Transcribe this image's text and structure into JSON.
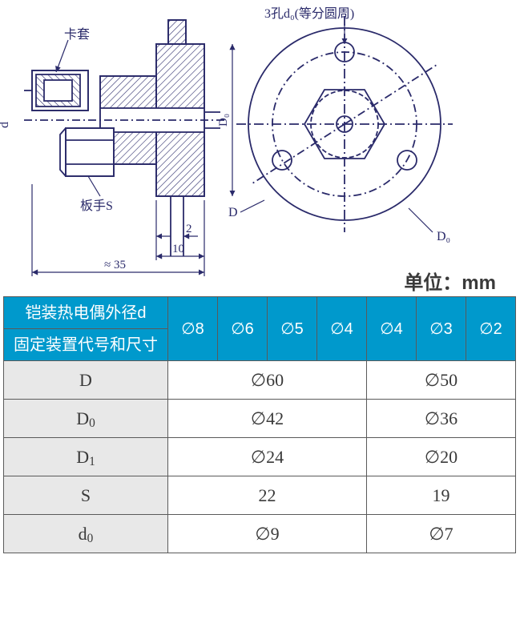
{
  "diagram": {
    "labels": {
      "ferrule": "卡套",
      "wrench": "板手S",
      "holes": "3孔d₀(等分圆周)",
      "dim_approx35": "≈ 35",
      "dim_10": "10",
      "dim_2": "2",
      "D_label": "D",
      "D1_label": "D₁",
      "D0_label": "D₀",
      "d_label": "d"
    },
    "colors": {
      "line": "#2a2a6a",
      "hatch": "#2a2a6a",
      "text": "#2a2a6a",
      "bg": "#ffffff"
    }
  },
  "unit_label": "单位：mm",
  "table": {
    "header_top": "铠装热电偶外径d",
    "header_bottom": "固定装置代号和尺寸",
    "diam_cols": [
      "∅8",
      "∅6",
      "∅5",
      "∅4",
      "∅4",
      "∅3",
      "∅2"
    ],
    "rows": [
      {
        "label_html": "D",
        "valA": "∅60",
        "valB": "∅50"
      },
      {
        "label_html": "D<span class='sub'>0</span>",
        "valA": "∅42",
        "valB": "∅36"
      },
      {
        "label_html": "D<span class='sub'>1</span>",
        "valA": "∅24",
        "valB": "∅20"
      },
      {
        "label_html": "S",
        "valA": "22",
        "valB": "19"
      },
      {
        "label_html": "d<span class='sub'>0</span>",
        "valA": "∅9",
        "valB": "∅7"
      }
    ],
    "colors": {
      "header_bg": "#0099cc",
      "header_text": "#ffffff",
      "label_bg": "#e8e8e8",
      "border": "#5a5a5a",
      "text": "#3a3a3a"
    }
  }
}
